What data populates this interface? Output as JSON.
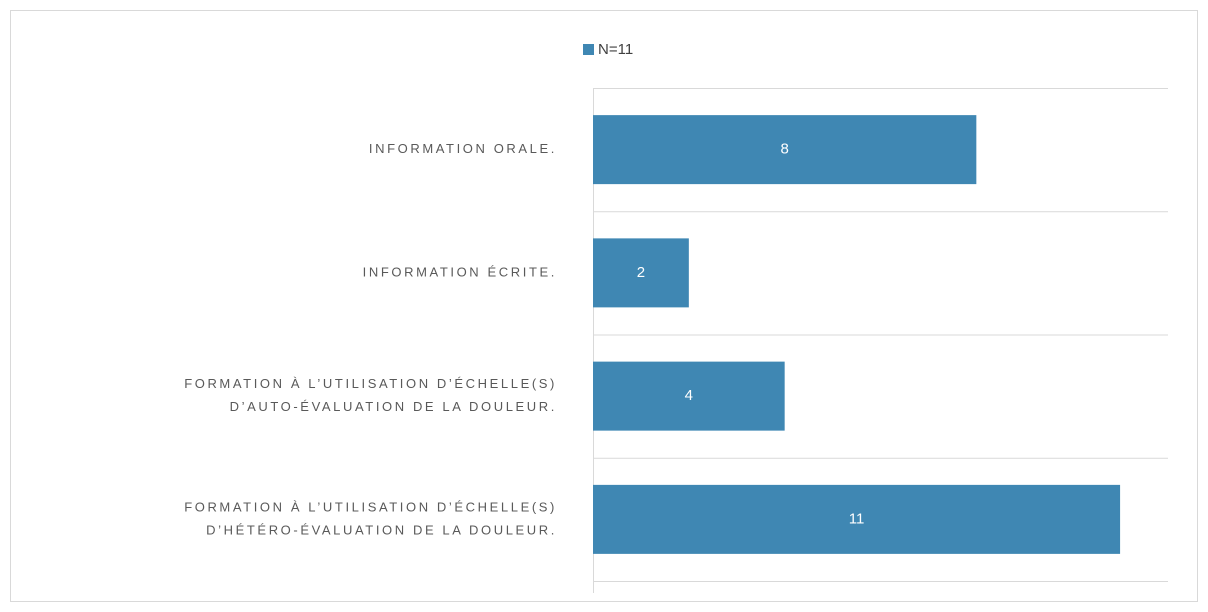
{
  "chart_data": {
    "type": "bar",
    "orientation": "horizontal",
    "categories": [
      [
        "INFORMATION ORALE."
      ],
      [
        "INFORMATION ÉCRITE."
      ],
      [
        "FORMATION À L’UTILISATION D’ÉCHELLE(S)",
        "D’AUTO-ÉVALUATION DE LA DOULEUR."
      ],
      [
        "FORMATION À L’UTILISATION D’ÉCHELLE(S)",
        "D’HÉTÉRO-ÉVALUATION DE LA DOULEUR."
      ]
    ],
    "series": [
      {
        "name": "N=11",
        "color": "#3f87b3",
        "values": [
          8,
          2,
          4,
          11
        ]
      }
    ],
    "xlim": [
      0,
      12
    ],
    "legend": "top"
  }
}
